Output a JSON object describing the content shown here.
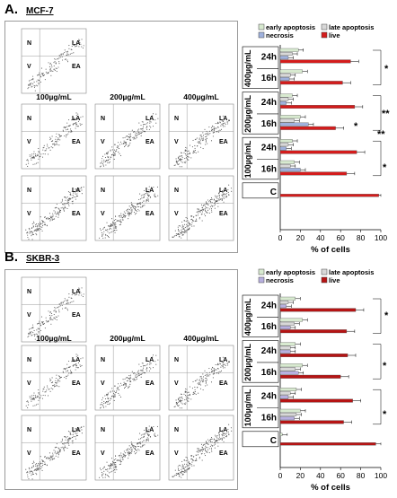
{
  "panels": [
    {
      "label": "A.",
      "cell_line": "MCF-7",
      "flow": {
        "conc_labels": [
          "100µg/mL",
          "200µg/mL",
          "400µg/mL"
        ],
        "quadrants": {
          "n": "N",
          "v": "V",
          "la": "LA",
          "ea": "EA"
        }
      },
      "chart_data": {
        "type": "bar",
        "orientation": "horizontal",
        "legend": [
          "early apoptosis",
          "late apoptosis",
          "necrosis",
          "live"
        ],
        "colors": {
          "early apoptosis": "#d8ead0",
          "late apoptosis": "#d8d8d8",
          "necrosis": "#9fb1dd",
          "live": "#d41c1c"
        },
        "groups": [
          {
            "label": "400µg/mL",
            "rows": [
              {
                "time": "24h",
                "early apoptosis": 18,
                "late apoptosis": 12,
                "necrosis": 8,
                "live": 70
              },
              {
                "time": "16h",
                "early apoptosis": 22,
                "late apoptosis": 10,
                "necrosis": 9,
                "live": 62
              }
            ]
          },
          {
            "label": "200µg/mL",
            "rows": [
              {
                "time": "24h",
                "early apoptosis": 12,
                "late apoptosis": 8,
                "necrosis": 6,
                "live": 74
              },
              {
                "time": "16h",
                "early apoptosis": 20,
                "late apoptosis": 14,
                "necrosis": 28,
                "live": 55
              }
            ]
          },
          {
            "label": "100µg/mL",
            "rows": [
              {
                "time": "24h",
                "early apoptosis": 12,
                "late apoptosis": 8,
                "necrosis": 6,
                "live": 76
              },
              {
                "time": "16h",
                "early apoptosis": 14,
                "late apoptosis": 10,
                "necrosis": 20,
                "live": 66
              }
            ]
          },
          {
            "label": "",
            "rows": [
              {
                "time": "C",
                "early apoptosis": 0,
                "late apoptosis": 0,
                "necrosis": 0,
                "live": 98
              }
            ]
          }
        ],
        "xlabel": "% of cells",
        "xticks": [
          0,
          20,
          40,
          60,
          80,
          100
        ],
        "xlim": [
          0,
          100
        ],
        "significance": [
          "*",
          "**",
          "*",
          "**",
          "*"
        ]
      }
    },
    {
      "label": "B.",
      "cell_line": "SKBR-3",
      "flow": {
        "conc_labels": [
          "100µg/mL",
          "200µg/mL",
          "400µg/mL"
        ],
        "quadrants": {
          "n": "N",
          "v": "V",
          "la": "LA",
          "ea": "EA"
        }
      },
      "chart_data": {
        "type": "bar",
        "orientation": "horizontal",
        "legend": [
          "early apoptosis",
          "late apoptosis",
          "necrosis",
          "live"
        ],
        "colors": {
          "early apoptosis": "#d8ead0",
          "late apoptosis": "#d8d8d8",
          "necrosis": "#b8b0e0",
          "live": "#b61414"
        },
        "groups": [
          {
            "label": "400µg/mL",
            "rows": [
              {
                "time": "24h",
                "early apoptosis": 15,
                "late apoptosis": 8,
                "necrosis": 6,
                "live": 75
              },
              {
                "time": "16h",
                "early apoptosis": 22,
                "late apoptosis": 14,
                "necrosis": 10,
                "live": 66
              }
            ]
          },
          {
            "label": "200µg/mL",
            "rows": [
              {
                "time": "24h",
                "early apoptosis": 15,
                "late apoptosis": 10,
                "necrosis": 10,
                "live": 67
              },
              {
                "time": "16h",
                "early apoptosis": 22,
                "late apoptosis": 15,
                "necrosis": 18,
                "live": 60
              }
            ]
          },
          {
            "label": "100µg/mL",
            "rows": [
              {
                "time": "24h",
                "early apoptosis": 16,
                "late apoptosis": 10,
                "necrosis": 8,
                "live": 72
              },
              {
                "time": "16h",
                "early apoptosis": 20,
                "late apoptosis": 16,
                "necrosis": 14,
                "live": 63
              }
            ]
          },
          {
            "label": "",
            "rows": [
              {
                "time": "C",
                "early apoptosis": 2,
                "late apoptosis": 0,
                "necrosis": 0,
                "live": 95
              }
            ]
          }
        ],
        "xlabel": "% of cells",
        "xticks": [
          0,
          20,
          40,
          60,
          80,
          100
        ],
        "xlim": [
          0,
          100
        ],
        "significance": [
          "*",
          "*",
          "*"
        ]
      }
    }
  ]
}
